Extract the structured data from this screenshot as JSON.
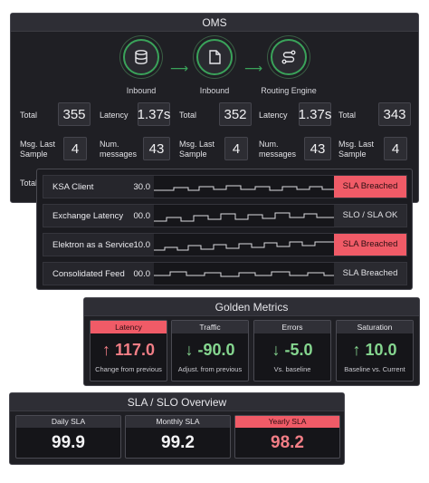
{
  "oms": {
    "title": "OMS",
    "nodes": [
      {
        "label": "Inbound",
        "icon": "database-icon"
      },
      {
        "label": "Inbound",
        "icon": "file-icon"
      },
      {
        "label": "Routing Engine",
        "icon": "route-icon"
      }
    ],
    "stats": [
      {
        "total_label": "Total",
        "total": "355",
        "latency_label": "Latency",
        "latency": "1.37s",
        "sample_label": "Msg. Last Sample",
        "sample": "4",
        "num_label": "Num. messages",
        "num": "43"
      },
      {
        "total_label": "Total",
        "total": "352",
        "latency_label": "Latency",
        "latency": "1.37s",
        "sample_label": "Msg. Last Sample",
        "sample": "4",
        "num_label": "Num. messages",
        "num": "43"
      },
      {
        "total_label": "Total",
        "total": "343",
        "sample_label": "Msg. Last Sample",
        "sample": "4"
      }
    ],
    "partial_total_label": "Total"
  },
  "clients": [
    {
      "name": "KSA Client",
      "value": "30.0",
      "status": "SLA Breached",
      "status_color": "#f05b67"
    },
    {
      "name": "Exchange Latency",
      "value": "00.0",
      "status": "SLO / SLA OK",
      "status_color": "#2a2a30"
    },
    {
      "name": "Elektron as a Service",
      "value": "10.0",
      "status": "SLA Breached",
      "status_color": "#f05b67"
    },
    {
      "name": "Consolidated Feed",
      "value": "00.0",
      "status": "SLA Breached",
      "status_color": "#2a2a30"
    }
  ],
  "golden": {
    "title": "Golden Metrics",
    "cards": [
      {
        "label": "Latency",
        "value": "↑ 117.0",
        "sub": "Change from previous",
        "tone": "pink",
        "head": "red"
      },
      {
        "label": "Traffic",
        "value": "↓ -90.0",
        "sub": "Adjust. from previous",
        "tone": "green",
        "head": "gray"
      },
      {
        "label": "Errors",
        "value": "↓ -5.0",
        "sub": "Vs. baseline",
        "tone": "green",
        "head": "gray"
      },
      {
        "label": "Saturation",
        "value": "↑ 10.0",
        "sub": "Baseline vs. Current",
        "tone": "green",
        "head": "gray"
      }
    ]
  },
  "slo": {
    "title": "SLA / SLO Overview",
    "cards": [
      {
        "label": "Daily SLA",
        "value": "99.9",
        "head": "gray"
      },
      {
        "label": "Monthly SLA",
        "value": "99.2",
        "head": "gray"
      },
      {
        "label": "Yearly SLA",
        "value": "98.2",
        "head": "red"
      }
    ]
  },
  "colors": {
    "accent_green": "#3aa35a",
    "breach_red": "#f05b67",
    "panel_bg": "#1f1f24"
  }
}
